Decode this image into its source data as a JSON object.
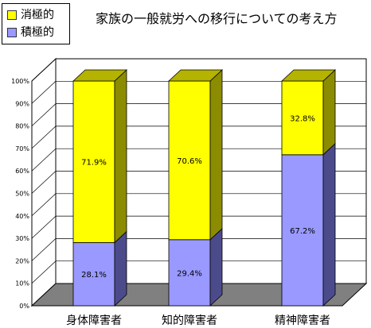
{
  "chart_data": {
    "type": "bar",
    "stacked": true,
    "percent": true,
    "title": "家族の一般就労への移行についての考え方",
    "categories": [
      "身体障害者",
      "知的障害者",
      "精神障害者"
    ],
    "series": [
      {
        "name": "積極的",
        "values": [
          28.1,
          29.4,
          67.2
        ],
        "labels": [
          "28.1%",
          "29.4%",
          "67.2%"
        ],
        "color": "#9999ff",
        "side_color": "#4b4b8c",
        "top_color": "#7777cc"
      },
      {
        "name": "消極的",
        "values": [
          71.9,
          70.6,
          32.8
        ],
        "labels": [
          "71.9%",
          "70.6%",
          "32.8%"
        ],
        "color": "#ffff00",
        "side_color": "#8c8c00",
        "top_color": "#b3b300"
      }
    ],
    "y_ticks": [
      "0%",
      "10%",
      "20%",
      "30%",
      "40%",
      "50%",
      "60%",
      "70%",
      "80%",
      "90%",
      "100%"
    ],
    "ylim": [
      0,
      100
    ],
    "floor_color": "#808080",
    "grid": true,
    "legend_position": "top-left"
  }
}
